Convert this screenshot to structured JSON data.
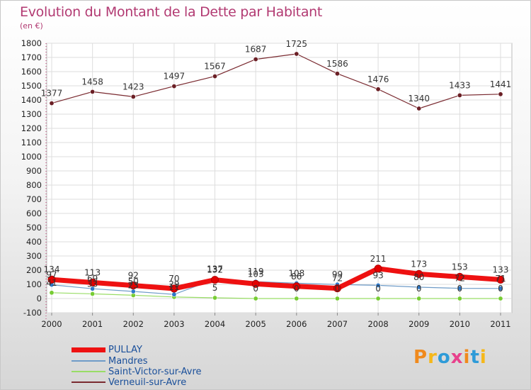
{
  "title": "Evolution du Montant de la Dette par Habitant",
  "subtitle": "(en €)",
  "logo": {
    "text": "Proxiti",
    "letters": [
      "P",
      "r",
      "o",
      "x",
      "i",
      "t",
      "i"
    ],
    "colors": [
      "#f08a1d",
      "#f5b81a",
      "#2e9bd8",
      "#e8418c",
      "#f08a1d",
      "#2e9bd8",
      "#f5b81a"
    ]
  },
  "chart_data": {
    "type": "line",
    "title": "Evolution du Montant de la Dette par Habitant",
    "ylabel": "(en €)",
    "categories": [
      "2000",
      "2001",
      "2002",
      "2003",
      "2004",
      "2005",
      "2006",
      "2007",
      "2008",
      "2009",
      "2010",
      "2011"
    ],
    "ylim": [
      -100,
      1800
    ],
    "yticks": [
      -100,
      0,
      100,
      200,
      300,
      400,
      500,
      600,
      700,
      800,
      900,
      1000,
      1100,
      1200,
      1300,
      1400,
      1500,
      1600,
      1700,
      1800
    ],
    "series": [
      {
        "name": "Verneuil-sur-Avre",
        "color": "#7a2a30",
        "width": 1.2,
        "marker": "#6b1f25",
        "values": [
          1377,
          1458,
          1423,
          1497,
          1567,
          1687,
          1725,
          1586,
          1476,
          1340,
          1433,
          1441
        ],
        "labels": [
          "1377",
          "1458",
          "1423",
          "1497",
          "1567",
          "1687",
          "1725",
          "1586",
          "1476",
          "1340",
          "1433",
          "1441"
        ]
      },
      {
        "name": "Saint-Victor-sur-Avre",
        "color": "#99dd66",
        "width": 1.2,
        "marker": "#77cc33",
        "values": [
          41,
          33,
          23,
          11,
          5,
          0,
          0,
          0,
          0,
          0,
          0,
          0
        ],
        "labels": [
          "41",
          "33",
          "23",
          "11",
          "5",
          "0",
          "0",
          "0",
          "0",
          "0",
          "0",
          "0"
        ]
      },
      {
        "name": "Mandres",
        "color": "#6f9cc8",
        "width": 1.2,
        "marker": "#2e78c8",
        "values": [
          97,
          69,
          50,
          29,
          137,
          119,
          108,
          99,
          93,
          80,
          72,
          71
        ],
        "labels": [
          "97",
          "69",
          "50",
          "29",
          "137",
          "119",
          "108",
          "99",
          "93",
          "80",
          "72",
          "71"
        ]
      },
      {
        "name": "PULLAY",
        "color": "#ee1111",
        "width": 7,
        "marker": "#e30000",
        "values": [
          134,
          113,
          92,
          70,
          132,
          103,
          86,
          72,
          211,
          173,
          153,
          133
        ],
        "labels": [
          "134",
          "113",
          "92",
          "70",
          "132",
          "103",
          "86",
          "72",
          "211",
          "173",
          "153",
          "133"
        ]
      }
    ],
    "legend": [
      {
        "name": "PULLAY",
        "color": "#ee1111"
      },
      {
        "name": "Mandres",
        "color": "#6f9cc8"
      },
      {
        "name": "Saint-Victor-sur-Avre",
        "color": "#99dd66"
      },
      {
        "name": "Verneuil-sur-Avre",
        "color": "#7a2a30"
      }
    ]
  }
}
